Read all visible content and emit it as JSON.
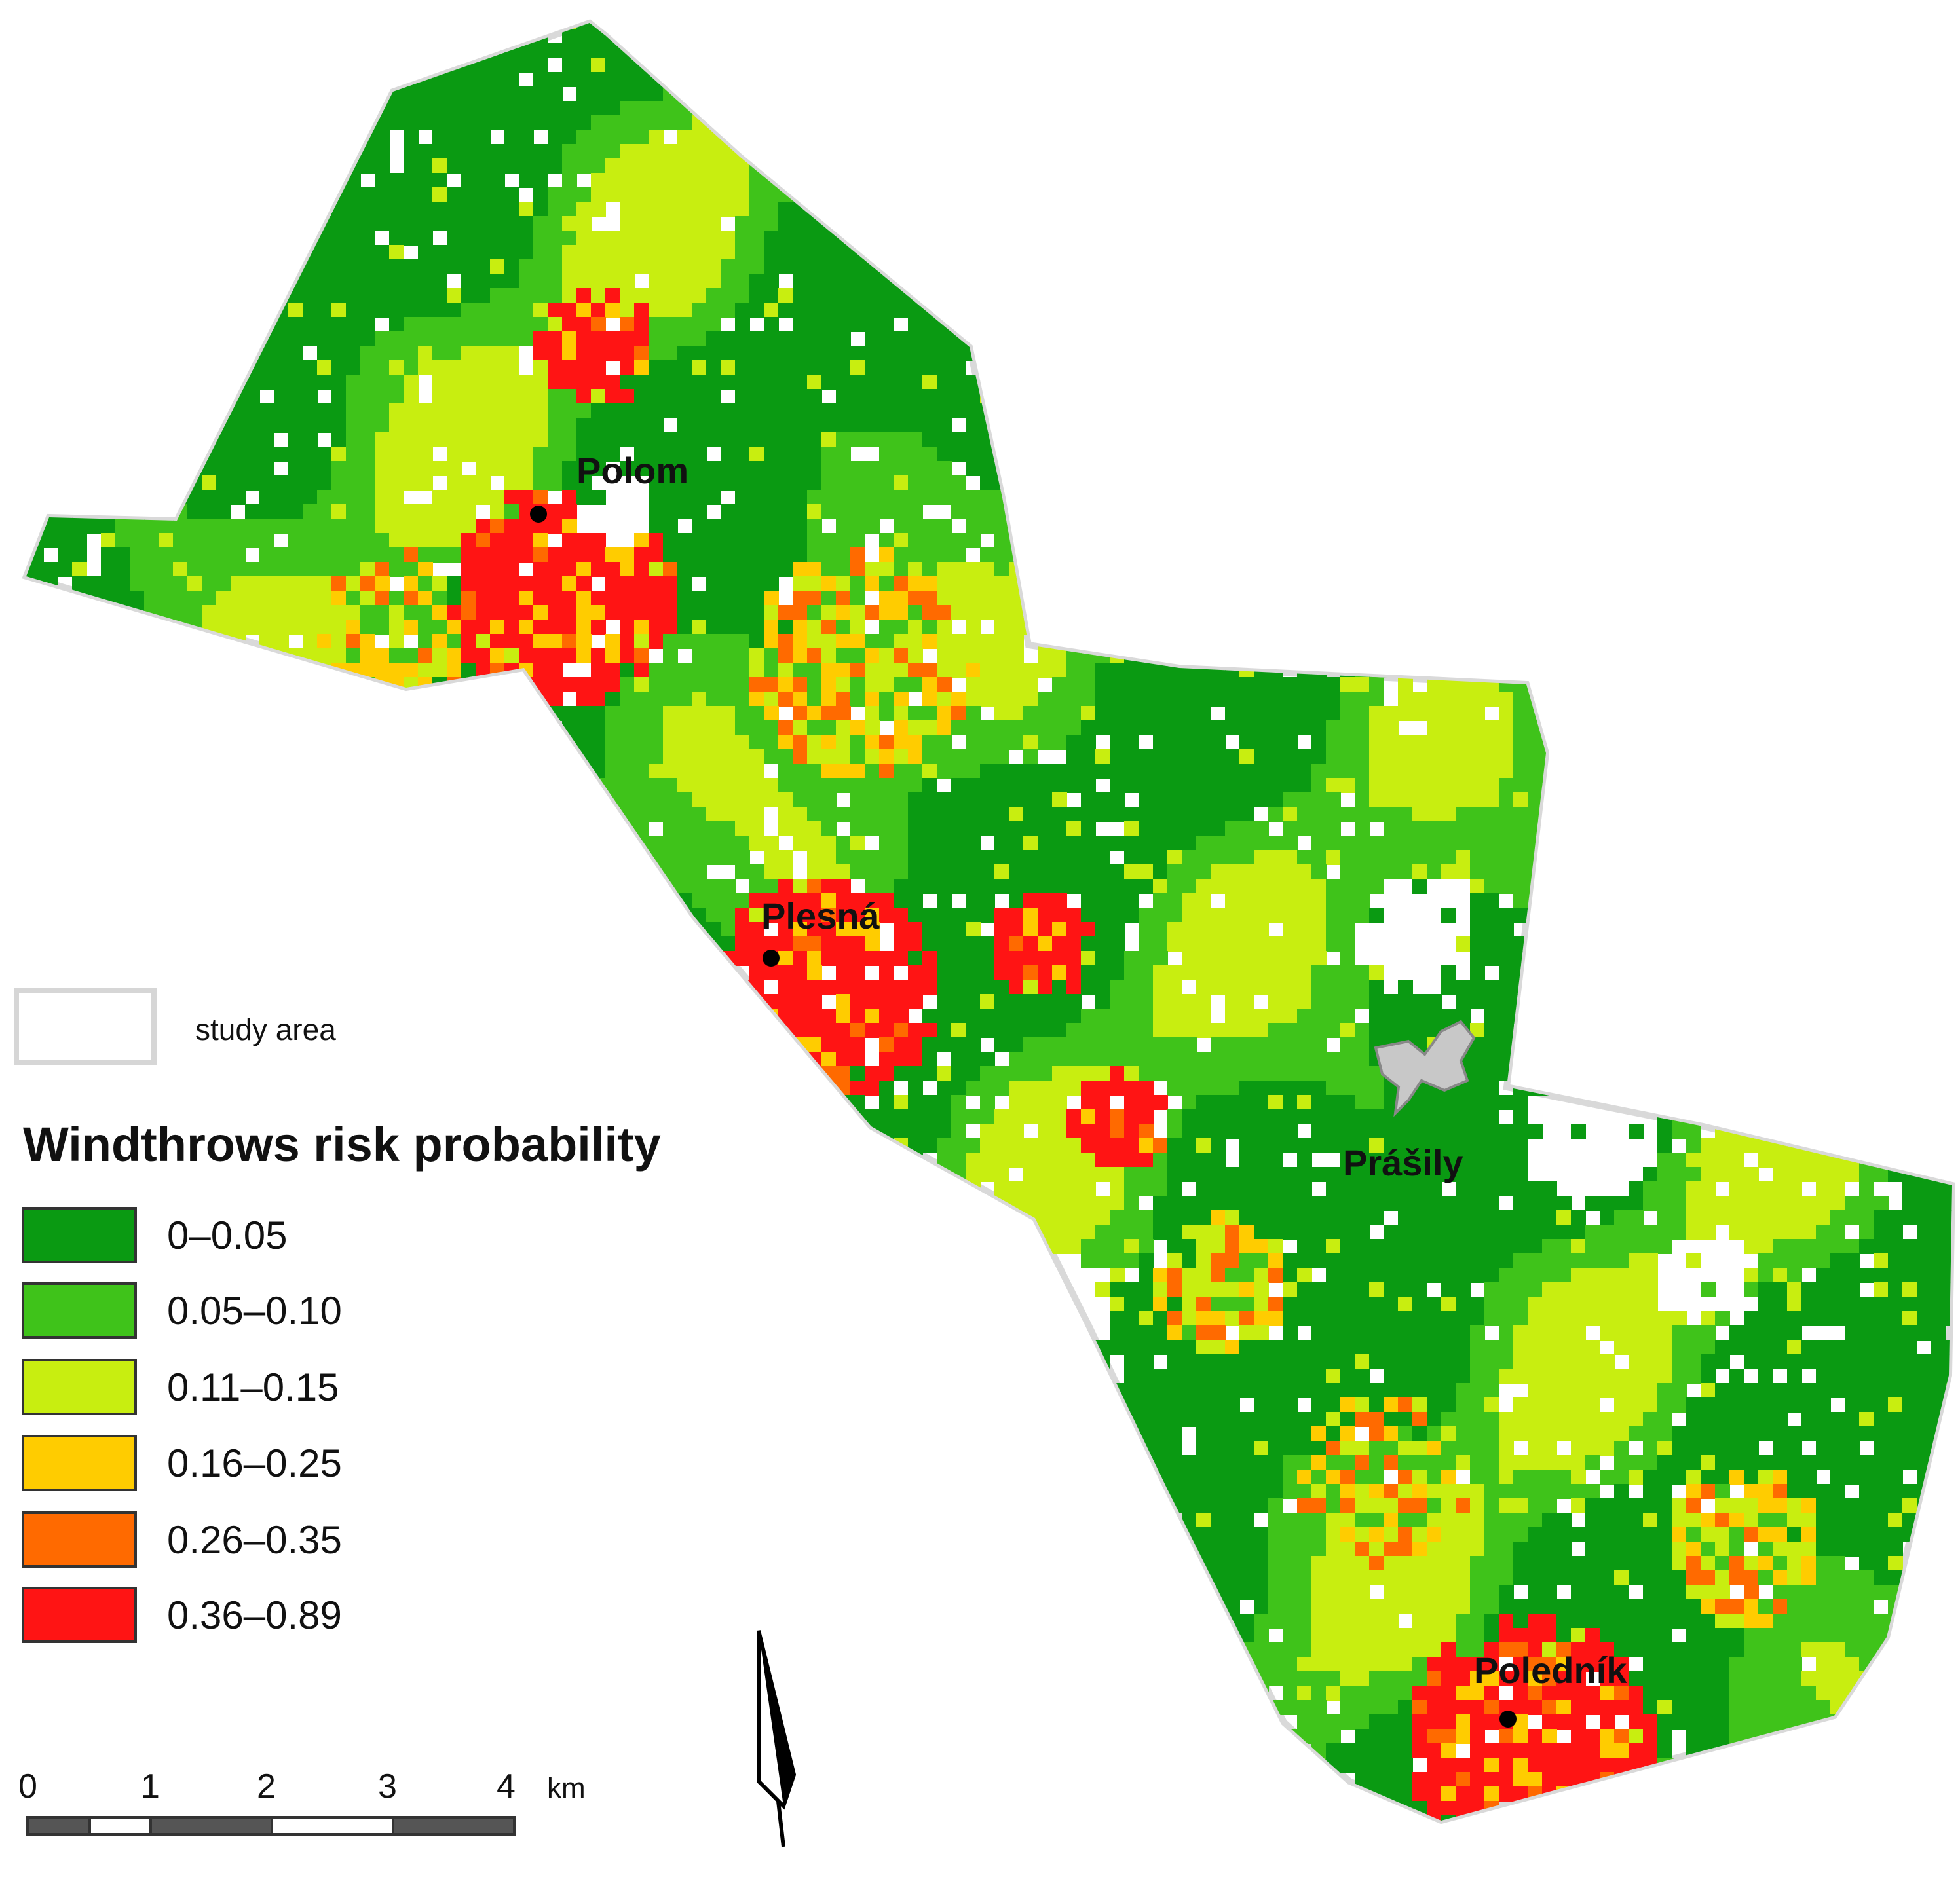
{
  "map": {
    "places": [
      {
        "name": "Polom"
      },
      {
        "name": "Plesná"
      },
      {
        "name": "Prášily"
      },
      {
        "name": "Poledník"
      }
    ],
    "study_area_label": "study area",
    "study_area_fill": "#ffffff",
    "study_area_stroke": "#d9d9d9"
  },
  "legend": {
    "title": "Windthrows risk probability",
    "classes": [
      {
        "label": "0–0.05",
        "color": "#0a9a12"
      },
      {
        "label": "0.05–0.10",
        "color": "#3fc31a"
      },
      {
        "label": "0.11–0.15",
        "color": "#c8ee10"
      },
      {
        "label": "0.16–0.25",
        "color": "#ffcc00"
      },
      {
        "label": "0.26–0.35",
        "color": "#ff6a00"
      },
      {
        "label": "0.36–0.89",
        "color": "#ff1414"
      }
    ]
  },
  "scale_bar": {
    "ticks": [
      "0",
      "1",
      "2",
      "3",
      "4"
    ],
    "unit": "km"
  },
  "north_arrow": {
    "icon": "north-arrow-icon"
  }
}
